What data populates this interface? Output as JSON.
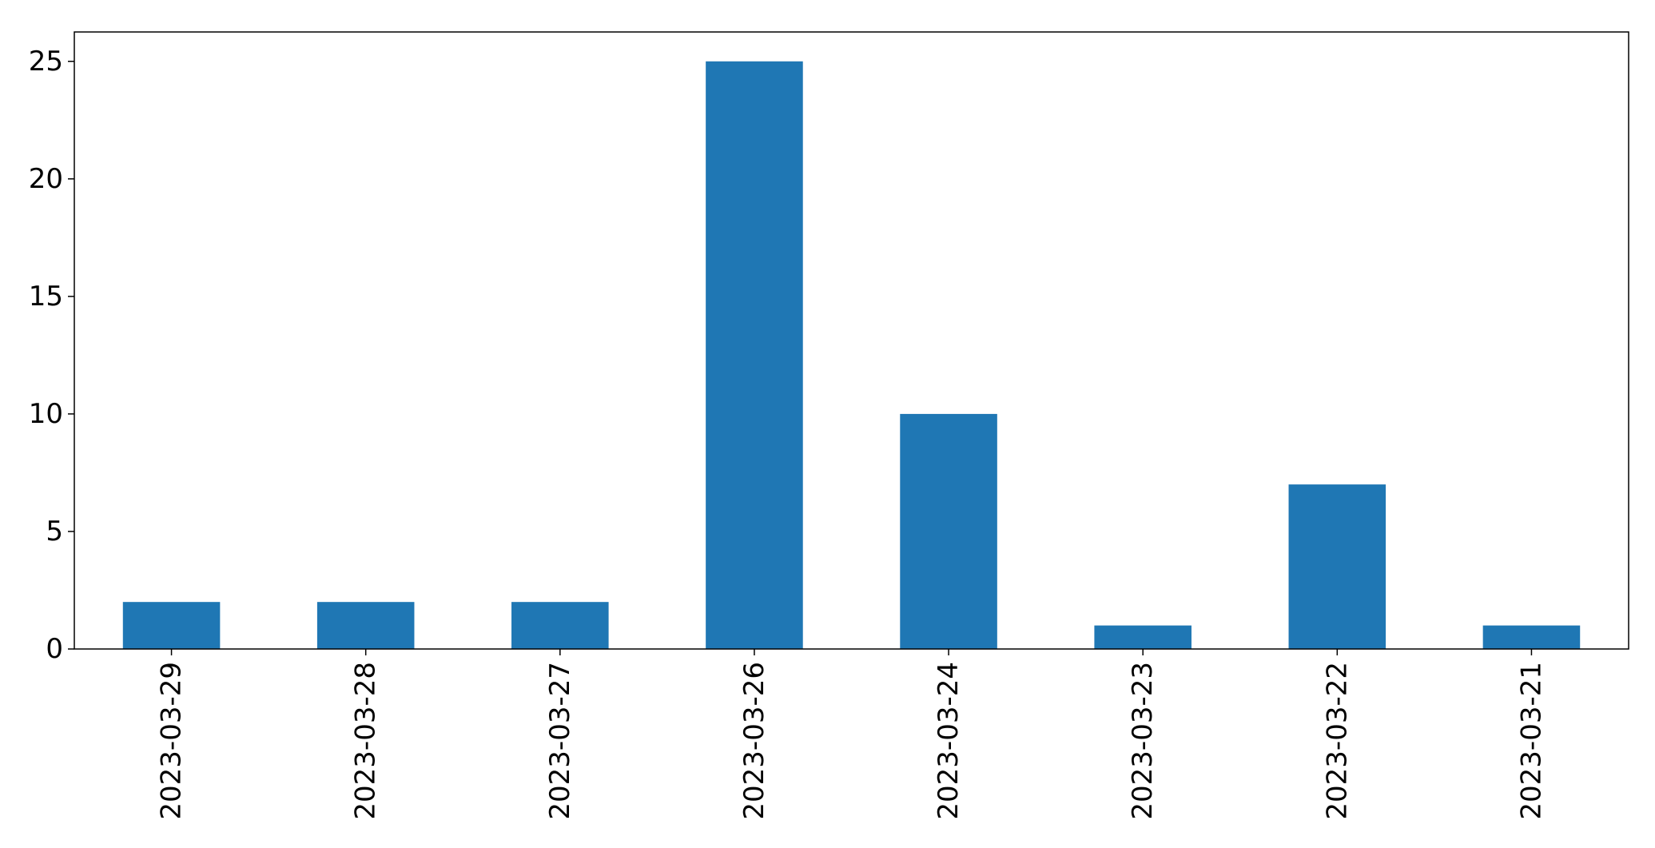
{
  "chart_data": {
    "type": "bar",
    "categories": [
      "2023-03-29",
      "2023-03-28",
      "2023-03-27",
      "2023-03-26",
      "2023-03-24",
      "2023-03-23",
      "2023-03-22",
      "2023-03-21"
    ],
    "values": [
      2,
      2,
      2,
      25,
      10,
      1,
      7,
      1
    ],
    "title": "",
    "xlabel": "",
    "ylabel": "",
    "ylim": [
      0,
      26.25
    ],
    "yticks": [
      0,
      5,
      10,
      15,
      20,
      25
    ],
    "grid": false,
    "bar_color": "#1f77b4",
    "axis_color": "#000000",
    "background": "#ffffff"
  }
}
